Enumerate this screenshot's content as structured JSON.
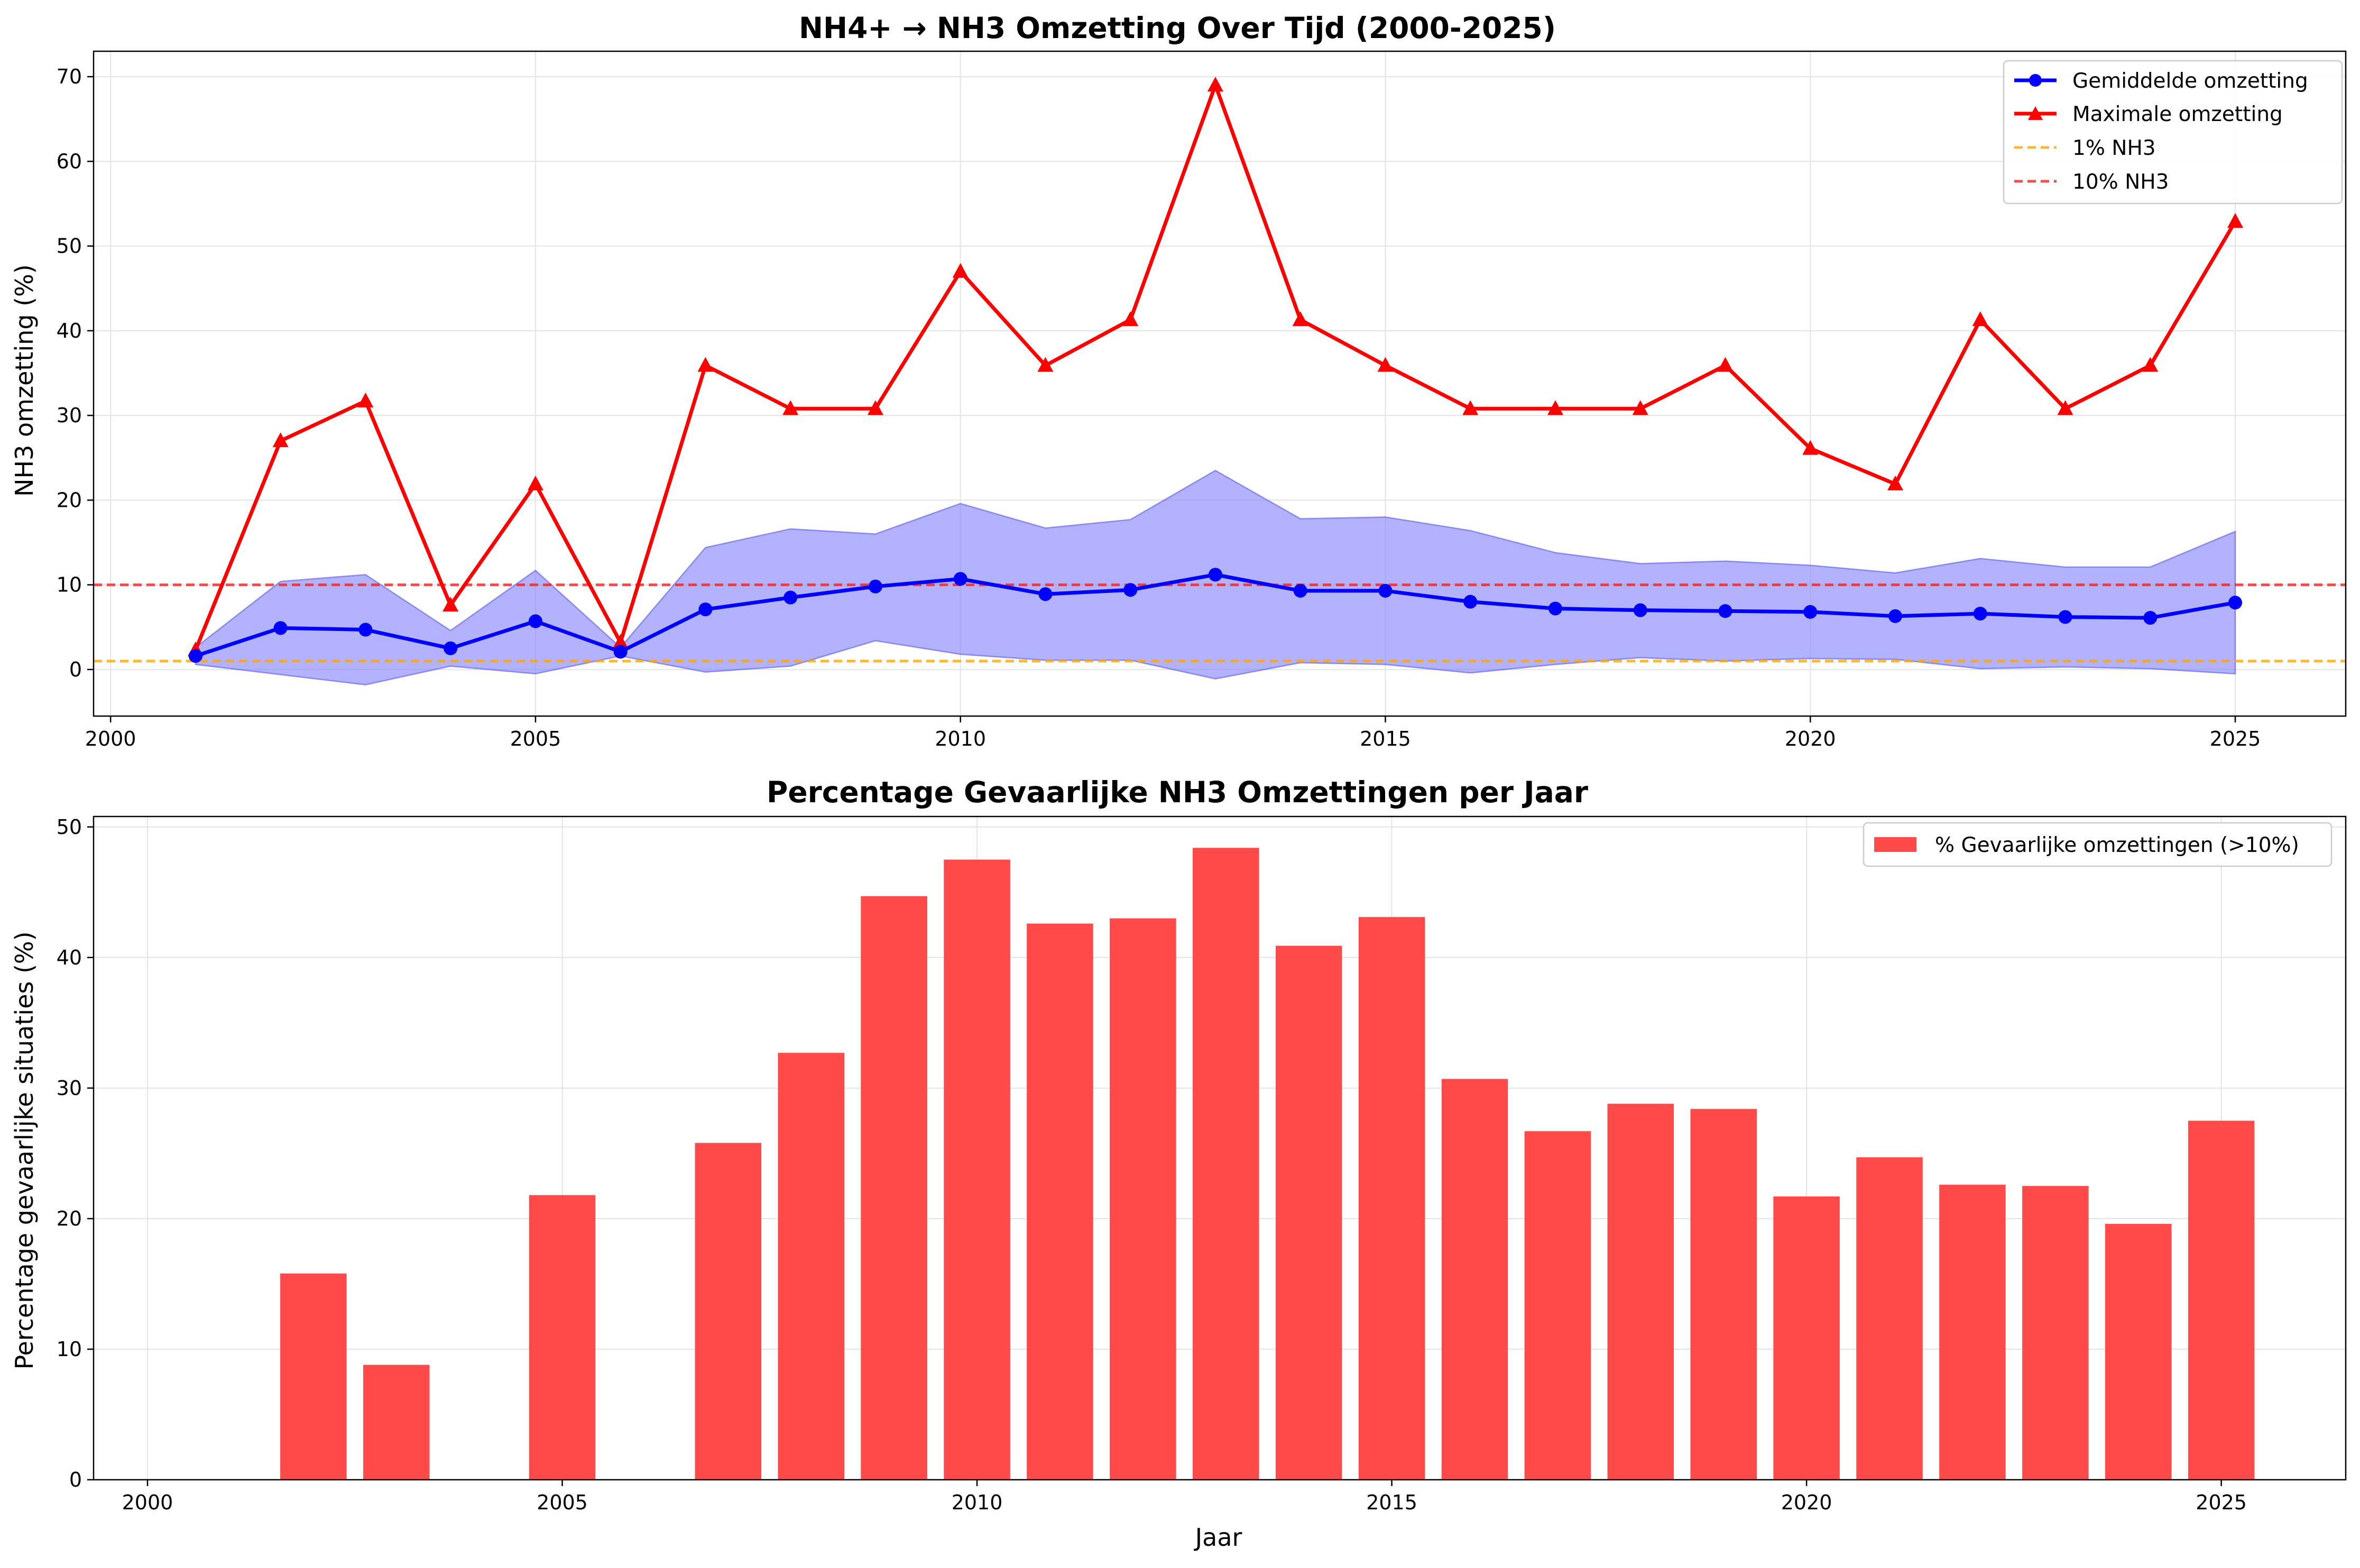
{
  "colors": {
    "mean": "#0000ff",
    "max": "#ff0000",
    "band": "#7f7fff",
    "bar": "#ff4a4a",
    "line_1pct": "#ffa500",
    "line_10pct": "#ee2222",
    "grid": "#e3e3e3"
  },
  "chart_data": [
    {
      "type": "line",
      "title": "NH4+ → NH3 Omzetting Over Tijd (2000-2025)",
      "xlabel": "",
      "ylabel": "NH3 omzetting (%)",
      "xlim": [
        1999.8,
        2026.3
      ],
      "ylim": [
        -5.5,
        73
      ],
      "xticks": [
        2000,
        2005,
        2010,
        2015,
        2020,
        2025
      ],
      "yticks": [
        0,
        10,
        20,
        30,
        40,
        50,
        60,
        70
      ],
      "grid": true,
      "legend": "top-right",
      "x": [
        2001,
        2002,
        2003,
        2004,
        2005,
        2006,
        2007,
        2008,
        2009,
        2010,
        2011,
        2012,
        2013,
        2014,
        2015,
        2016,
        2017,
        2018,
        2019,
        2020,
        2021,
        2022,
        2023,
        2024,
        2025
      ],
      "series": [
        {
          "name": "Gemiddelde omzetting",
          "marker": "circle",
          "values": [
            1.6,
            4.9,
            4.7,
            2.5,
            5.7,
            2.1,
            7.1,
            8.5,
            9.8,
            10.7,
            8.9,
            9.4,
            11.2,
            9.3,
            9.3,
            8.0,
            7.2,
            7.0,
            6.9,
            6.8,
            6.3,
            6.6,
            6.2,
            6.1,
            7.9
          ]
        },
        {
          "name": "Maximale omzetting",
          "marker": "triangle",
          "values": [
            2.3,
            27.0,
            31.7,
            7.6,
            21.9,
            3.2,
            35.9,
            30.8,
            30.8,
            47.0,
            35.9,
            41.3,
            69.0,
            41.3,
            35.9,
            30.8,
            30.8,
            30.8,
            35.9,
            26.1,
            21.9,
            41.3,
            30.8,
            35.9,
            52.9
          ]
        }
      ],
      "band": {
        "upper": [
          2.6,
          10.4,
          11.2,
          4.6,
          11.7,
          2.6,
          14.4,
          16.6,
          16.0,
          19.6,
          16.7,
          17.7,
          23.5,
          17.8,
          18.0,
          16.4,
          13.8,
          12.5,
          12.8,
          12.3,
          11.4,
          13.1,
          12.1,
          12.1,
          16.3
        ],
        "lower": [
          0.6,
          -0.6,
          -1.8,
          0.4,
          -0.5,
          1.6,
          -0.3,
          0.4,
          3.4,
          1.8,
          1.1,
          1.1,
          -1.1,
          0.8,
          0.6,
          -0.4,
          0.6,
          1.4,
          1.0,
          1.3,
          1.2,
          0.1,
          0.3,
          0.1,
          -0.5
        ]
      },
      "reference_lines": [
        {
          "name": "1% NH3",
          "y": 1,
          "style": "dashed",
          "color": "#ffa500"
        },
        {
          "name": "10% NH3",
          "y": 10,
          "style": "dashed",
          "color": "#ee2222"
        }
      ]
    },
    {
      "type": "bar",
      "title": "Percentage Gevaarlijke NH3 Omzettingen per Jaar",
      "xlabel": "Jaar",
      "ylabel": "Percentage gevaarlijke situaties (%)",
      "xlim": [
        1999.35,
        2026.5
      ],
      "ylim": [
        0,
        50.8
      ],
      "xticks": [
        2000,
        2005,
        2010,
        2015,
        2020,
        2025
      ],
      "yticks": [
        0,
        10,
        20,
        30,
        40,
        50
      ],
      "grid": true,
      "legend": "top-right",
      "categories": [
        2001,
        2002,
        2003,
        2004,
        2005,
        2006,
        2007,
        2008,
        2009,
        2010,
        2011,
        2012,
        2013,
        2014,
        2015,
        2016,
        2017,
        2018,
        2019,
        2020,
        2021,
        2022,
        2023,
        2024,
        2025
      ],
      "series": [
        {
          "name": "% Gevaarlijke omzettingen (>10%)",
          "values": [
            0,
            15.8,
            8.8,
            0,
            21.8,
            0,
            25.8,
            32.7,
            44.7,
            47.5,
            42.6,
            43.0,
            48.4,
            40.9,
            43.1,
            30.7,
            26.7,
            28.8,
            28.4,
            21.7,
            24.7,
            22.6,
            22.5,
            19.6,
            27.5
          ]
        }
      ]
    }
  ]
}
